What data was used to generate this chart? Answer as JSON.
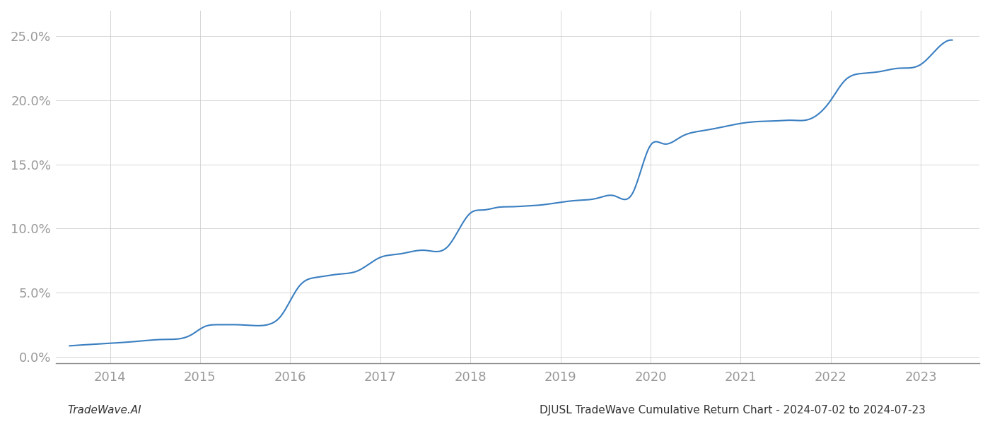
{
  "footer_left": "TradeWave.AI",
  "footer_right": "DJUSL TradeWave Cumulative Return Chart - 2024-07-02 to 2024-07-23",
  "line_color": "#3a7fc1",
  "background_color": "#ffffff",
  "grid_color": "#cccccc",
  "key_x": [
    2013.55,
    2014.0,
    2014.3,
    2014.6,
    2014.9,
    2015.05,
    2015.2,
    2015.4,
    2015.55,
    2015.75,
    2015.9,
    2016.1,
    2016.3,
    2016.55,
    2016.75,
    2017.0,
    2017.2,
    2017.5,
    2017.75,
    2018.0,
    2018.15,
    2018.3,
    2018.45,
    2018.6,
    2018.8,
    2019.0,
    2019.2,
    2019.4,
    2019.6,
    2019.8,
    2020.0,
    2020.15,
    2020.35,
    2020.55,
    2020.75,
    2021.0,
    2021.2,
    2021.4,
    2021.55,
    2021.75,
    2022.0,
    2022.15,
    2022.35,
    2022.55,
    2022.75,
    2023.0,
    2023.15,
    2023.35
  ],
  "key_y": [
    0.85,
    1.05,
    1.2,
    1.35,
    1.7,
    2.35,
    2.5,
    2.5,
    2.45,
    2.5,
    3.2,
    5.5,
    6.2,
    6.45,
    6.7,
    7.75,
    8.0,
    8.3,
    8.6,
    11.2,
    11.45,
    11.65,
    11.7,
    11.75,
    11.85,
    12.05,
    12.2,
    12.35,
    12.55,
    12.75,
    16.5,
    16.6,
    17.2,
    17.6,
    17.85,
    18.2,
    18.35,
    18.4,
    18.45,
    18.5,
    20.0,
    21.5,
    22.1,
    22.25,
    22.5,
    22.8,
    23.8,
    24.7
  ],
  "ylim": [
    -0.5,
    27.0
  ],
  "xlim": [
    2013.4,
    2023.65
  ],
  "yticks": [
    0.0,
    5.0,
    10.0,
    15.0,
    20.0,
    25.0
  ],
  "xticks": [
    2014,
    2015,
    2016,
    2017,
    2018,
    2019,
    2020,
    2021,
    2022,
    2023
  ],
  "line_width": 1.5,
  "footer_fontsize": 11,
  "tick_fontsize": 13,
  "tick_color": "#999999"
}
